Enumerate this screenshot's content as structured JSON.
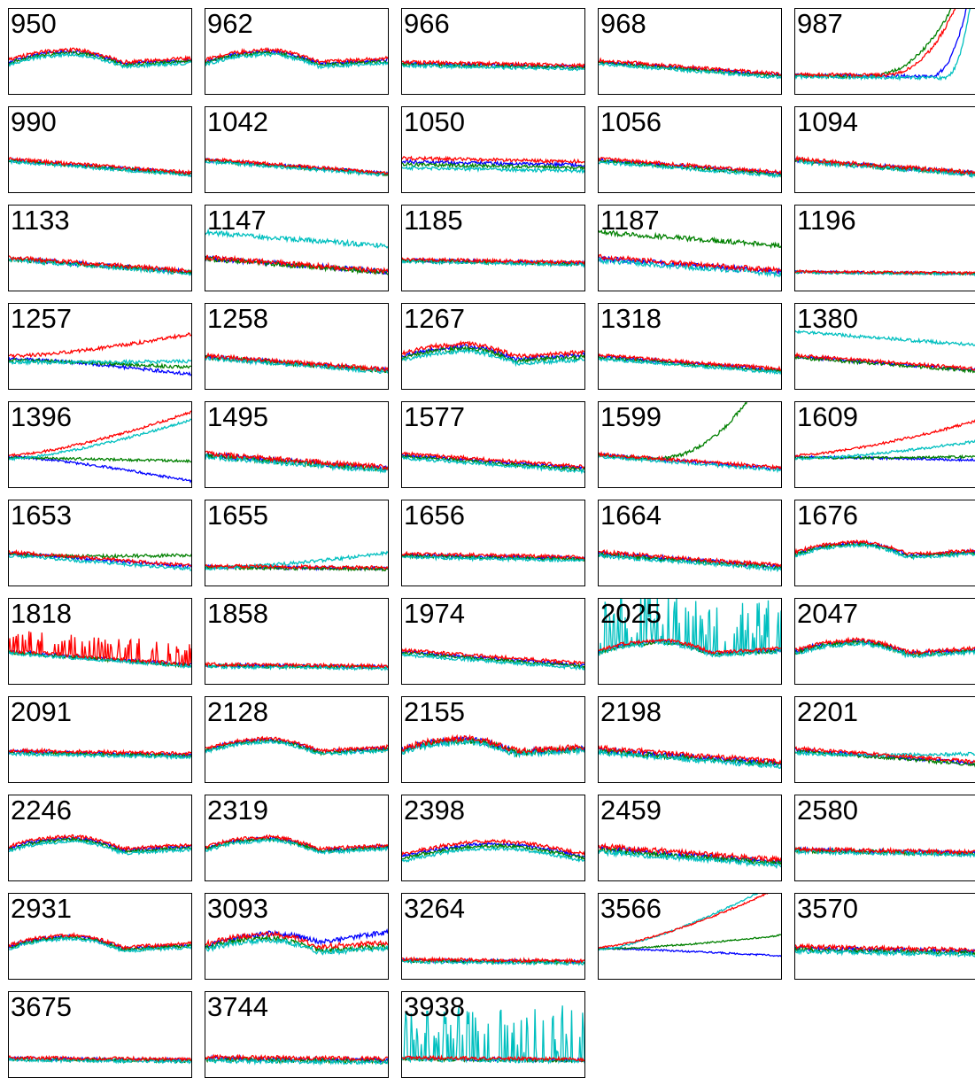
{
  "chart_data": {
    "type": "line",
    "title": "",
    "xlabel": "",
    "ylabel": "",
    "axis_ticks": "none",
    "grid": false,
    "legend": "none",
    "colors": [
      "#0000ff",
      "#ff0000",
      "#008000",
      "#00bfbf"
    ],
    "panels": [
      {
        "label": "950",
        "shape": "arc-down",
        "spread": 0.04,
        "noise": 0.02,
        "rise": [
          0,
          0,
          0,
          0
        ]
      },
      {
        "label": "962",
        "shape": "arc-down",
        "spread": 0.04,
        "noise": 0.02,
        "rise": [
          0,
          0,
          0,
          0
        ]
      },
      {
        "label": "966",
        "shape": "flat",
        "spread": 0.03,
        "noise": 0.02,
        "rise": [
          0,
          0,
          0,
          0
        ]
      },
      {
        "label": "968",
        "shape": "decline",
        "spread": 0.03,
        "noise": 0.02,
        "rise": [
          0,
          0,
          0,
          0
        ]
      },
      {
        "label": "987",
        "shape": "flat-low",
        "spread": 0.02,
        "noise": 0.02,
        "rise": [
          0.28,
          0.55,
          0.65,
          0.2
        ]
      },
      {
        "label": "990",
        "shape": "decline",
        "spread": 0.02,
        "noise": 0.02,
        "rise": [
          0,
          0,
          0,
          0
        ]
      },
      {
        "label": "1042",
        "shape": "decline",
        "spread": 0.02,
        "noise": 0.02,
        "rise": [
          0,
          0,
          0,
          0
        ]
      },
      {
        "label": "1050",
        "shape": "flat",
        "spread": 0.08,
        "noise": 0.02,
        "rise": [
          0,
          0,
          0,
          0
        ]
      },
      {
        "label": "1056",
        "shape": "decline",
        "spread": 0.03,
        "noise": 0.02,
        "rise": [
          0,
          0,
          0,
          0
        ]
      },
      {
        "label": "1094",
        "shape": "decline",
        "spread": 0.02,
        "noise": 0.025,
        "rise": [
          0,
          0,
          0,
          0
        ]
      },
      {
        "label": "1133",
        "shape": "decline",
        "spread": 0.02,
        "noise": 0.025,
        "rise": [
          0,
          0,
          0,
          0
        ]
      },
      {
        "label": "1147",
        "shape": "decline",
        "spread": 0.02,
        "noise": 0.03,
        "rise": [
          0,
          0,
          0,
          0
        ],
        "outlier": 3
      },
      {
        "label": "1185",
        "shape": "flat",
        "spread": 0.02,
        "noise": 0.02,
        "rise": [
          0,
          0,
          0,
          0
        ]
      },
      {
        "label": "1187",
        "shape": "decline",
        "spread": 0.03,
        "noise": 0.03,
        "rise": [
          0,
          0,
          0,
          0
        ],
        "outlier": 2
      },
      {
        "label": "1196",
        "shape": "flat-low",
        "spread": 0.01,
        "noise": 0.015,
        "rise": [
          0,
          0,
          0,
          0
        ]
      },
      {
        "label": "1257",
        "shape": "flat",
        "spread": 0.05,
        "noise": 0.02,
        "rise": [
          0,
          0,
          0,
          0
        ],
        "diverge": [
          -0.15,
          0.3,
          -0.05,
          0.05
        ]
      },
      {
        "label": "1258",
        "shape": "decline",
        "spread": 0.02,
        "noise": 0.025,
        "rise": [
          0,
          0,
          0,
          0
        ]
      },
      {
        "label": "1267",
        "shape": "arc-down",
        "spread": 0.06,
        "noise": 0.025,
        "rise": [
          0,
          0,
          0,
          0
        ]
      },
      {
        "label": "1318",
        "shape": "decline",
        "spread": 0.03,
        "noise": 0.02,
        "rise": [
          0,
          0,
          0,
          0
        ]
      },
      {
        "label": "1380",
        "shape": "decline",
        "spread": 0.03,
        "noise": 0.02,
        "rise": [
          0,
          0,
          0,
          0
        ],
        "outlier": 3
      },
      {
        "label": "1396",
        "shape": "flat",
        "spread": 0.03,
        "noise": 0.015,
        "rise": [
          0,
          0,
          0,
          0
        ],
        "diverge": [
          -0.25,
          0.55,
          0.0,
          0.5
        ]
      },
      {
        "label": "1495",
        "shape": "decline",
        "spread": 0.03,
        "noise": 0.03,
        "rise": [
          0,
          0,
          0,
          0
        ]
      },
      {
        "label": "1577",
        "shape": "decline",
        "spread": 0.04,
        "noise": 0.02,
        "rise": [
          0,
          0,
          0,
          0
        ]
      },
      {
        "label": "1599",
        "shape": "decline",
        "spread": 0.02,
        "noise": 0.02,
        "rise": [
          0,
          0,
          0.8,
          0
        ]
      },
      {
        "label": "1609",
        "shape": "flat",
        "spread": 0.03,
        "noise": 0.015,
        "rise": [
          0,
          0,
          0,
          0
        ],
        "diverge": [
          0.0,
          0.45,
          0.05,
          0.25
        ]
      },
      {
        "label": "1653",
        "shape": "decline",
        "spread": 0.03,
        "noise": 0.02,
        "rise": [
          0,
          0,
          0,
          0
        ],
        "diverge": [
          0,
          0,
          0.15,
          0
        ]
      },
      {
        "label": "1655",
        "shape": "flat-low",
        "spread": 0.02,
        "noise": 0.02,
        "rise": [
          0,
          0,
          0,
          0
        ],
        "diverge": [
          0,
          0,
          0,
          0.2
        ]
      },
      {
        "label": "1656",
        "shape": "flat",
        "spread": 0.03,
        "noise": 0.02,
        "rise": [
          0,
          0,
          0,
          0
        ]
      },
      {
        "label": "1664",
        "shape": "decline",
        "spread": 0.03,
        "noise": 0.025,
        "rise": [
          0,
          0,
          0,
          0
        ]
      },
      {
        "label": "1676",
        "shape": "arc-down",
        "spread": 0.03,
        "noise": 0.02,
        "rise": [
          0,
          0,
          0,
          0
        ]
      },
      {
        "label": "1818",
        "shape": "decline",
        "spread": 0.02,
        "noise": 0.02,
        "rise": [
          0,
          0,
          0,
          0
        ],
        "spiky": 1
      },
      {
        "label": "1858",
        "shape": "flat-low",
        "spread": 0.02,
        "noise": 0.02,
        "rise": [
          0,
          0,
          0,
          0
        ]
      },
      {
        "label": "1974",
        "shape": "decline",
        "spread": 0.04,
        "noise": 0.02,
        "rise": [
          0,
          0,
          0,
          0
        ]
      },
      {
        "label": "2025",
        "shape": "arc-down",
        "spread": 0.03,
        "noise": 0.02,
        "rise": [
          0,
          0,
          0,
          0
        ],
        "spiky": 3
      },
      {
        "label": "2047",
        "shape": "arc-down",
        "spread": 0.03,
        "noise": 0.025,
        "rise": [
          0,
          0,
          0,
          0
        ]
      },
      {
        "label": "2091",
        "shape": "flat",
        "spread": 0.03,
        "noise": 0.02,
        "rise": [
          0,
          0,
          0,
          0
        ]
      },
      {
        "label": "2128",
        "shape": "arc-down",
        "spread": 0.03,
        "noise": 0.02,
        "rise": [
          0,
          0,
          0,
          0
        ]
      },
      {
        "label": "2155",
        "shape": "arc-down",
        "spread": 0.03,
        "noise": 0.035,
        "rise": [
          0,
          0,
          0,
          0
        ]
      },
      {
        "label": "2198",
        "shape": "decline",
        "spread": 0.04,
        "noise": 0.03,
        "rise": [
          0,
          0,
          0,
          0
        ]
      },
      {
        "label": "2201",
        "shape": "decline",
        "spread": 0.04,
        "noise": 0.02,
        "rise": [
          0,
          0,
          0,
          0
        ],
        "diverge": [
          0,
          0,
          0,
          0.15
        ]
      },
      {
        "label": "2246",
        "shape": "arc-down",
        "spread": 0.04,
        "noise": 0.02,
        "rise": [
          0,
          0,
          0,
          0
        ]
      },
      {
        "label": "2319",
        "shape": "arc-down",
        "spread": 0.03,
        "noise": 0.02,
        "rise": [
          0,
          0,
          0,
          0
        ]
      },
      {
        "label": "2398",
        "shape": "arc-up",
        "spread": 0.06,
        "noise": 0.02,
        "rise": [
          0,
          0,
          0,
          0
        ]
      },
      {
        "label": "2459",
        "shape": "decline",
        "spread": 0.05,
        "noise": 0.03,
        "rise": [
          0,
          0,
          0,
          0
        ]
      },
      {
        "label": "2580",
        "shape": "flat",
        "spread": 0.02,
        "noise": 0.025,
        "rise": [
          0,
          0,
          0,
          0
        ]
      },
      {
        "label": "2931",
        "shape": "arc-down",
        "spread": 0.03,
        "noise": 0.02,
        "rise": [
          0,
          0,
          0,
          0
        ]
      },
      {
        "label": "3093",
        "shape": "arc-down",
        "spread": 0.05,
        "noise": 0.03,
        "rise": [
          0,
          0,
          0,
          0
        ],
        "diverge": [
          0.15,
          0,
          0,
          0
        ]
      },
      {
        "label": "3264",
        "shape": "flat-low",
        "spread": 0.02,
        "noise": 0.02,
        "rise": [
          0,
          0,
          0,
          0
        ]
      },
      {
        "label": "3566",
        "shape": "flat",
        "spread": 0.02,
        "noise": 0.01,
        "rise": [
          0,
          0,
          0,
          0
        ],
        "diverge": [
          -0.05,
          0.75,
          0.2,
          0.85
        ]
      },
      {
        "label": "3570",
        "shape": "flat",
        "spread": 0.04,
        "noise": 0.025,
        "rise": [
          0,
          0,
          0,
          0
        ]
      },
      {
        "label": "3675",
        "shape": "flat-low",
        "spread": 0.02,
        "noise": 0.02,
        "rise": [
          0,
          0,
          0,
          0
        ]
      },
      {
        "label": "3744",
        "shape": "flat-low",
        "spread": 0.03,
        "noise": 0.025,
        "rise": [
          0,
          0,
          0,
          0
        ]
      },
      {
        "label": "3938",
        "shape": "flat-low",
        "spread": 0.02,
        "noise": 0.02,
        "rise": [
          0,
          0,
          0,
          0
        ],
        "spiky": 3
      }
    ]
  }
}
